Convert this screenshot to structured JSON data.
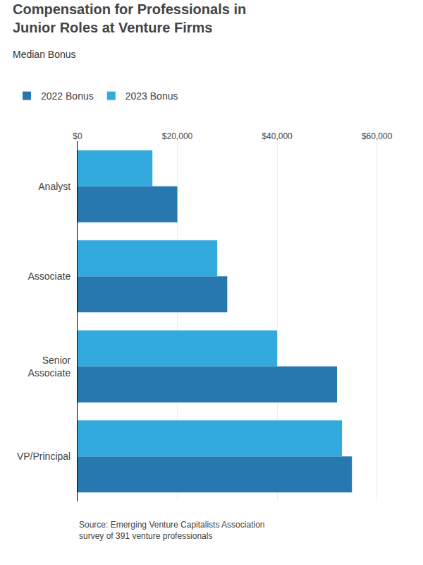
{
  "chart_data": {
    "type": "bar",
    "orientation": "horizontal",
    "title": "Compensation for Professionals in\nJunior Roles at Venture Firms",
    "subtitle": "Median Bonus",
    "categories": [
      "VP/Principal",
      "Senior\nAssociate",
      "Associate",
      "Analyst"
    ],
    "series": [
      {
        "name": "2022 Bonus",
        "color": "#2878b0",
        "values": [
          55000,
          52000,
          30000,
          20000
        ]
      },
      {
        "name": "2023 Bonus",
        "color": "#33aadd",
        "values": [
          53000,
          40000,
          28000,
          15000
        ]
      }
    ],
    "xlim": [
      0,
      65000
    ],
    "xticks": [
      {
        "value": 0,
        "label": "$0"
      },
      {
        "value": 20000,
        "label": "$20,000"
      },
      {
        "value": 40000,
        "label": "$40,000"
      },
      {
        "value": 60000,
        "label": "$60,000"
      }
    ],
    "grid": true,
    "legend": "upper left",
    "annotations": [
      "Source: Emerging Venture Capitalists Association\nsurvey of 391 venture professionals"
    ]
  }
}
